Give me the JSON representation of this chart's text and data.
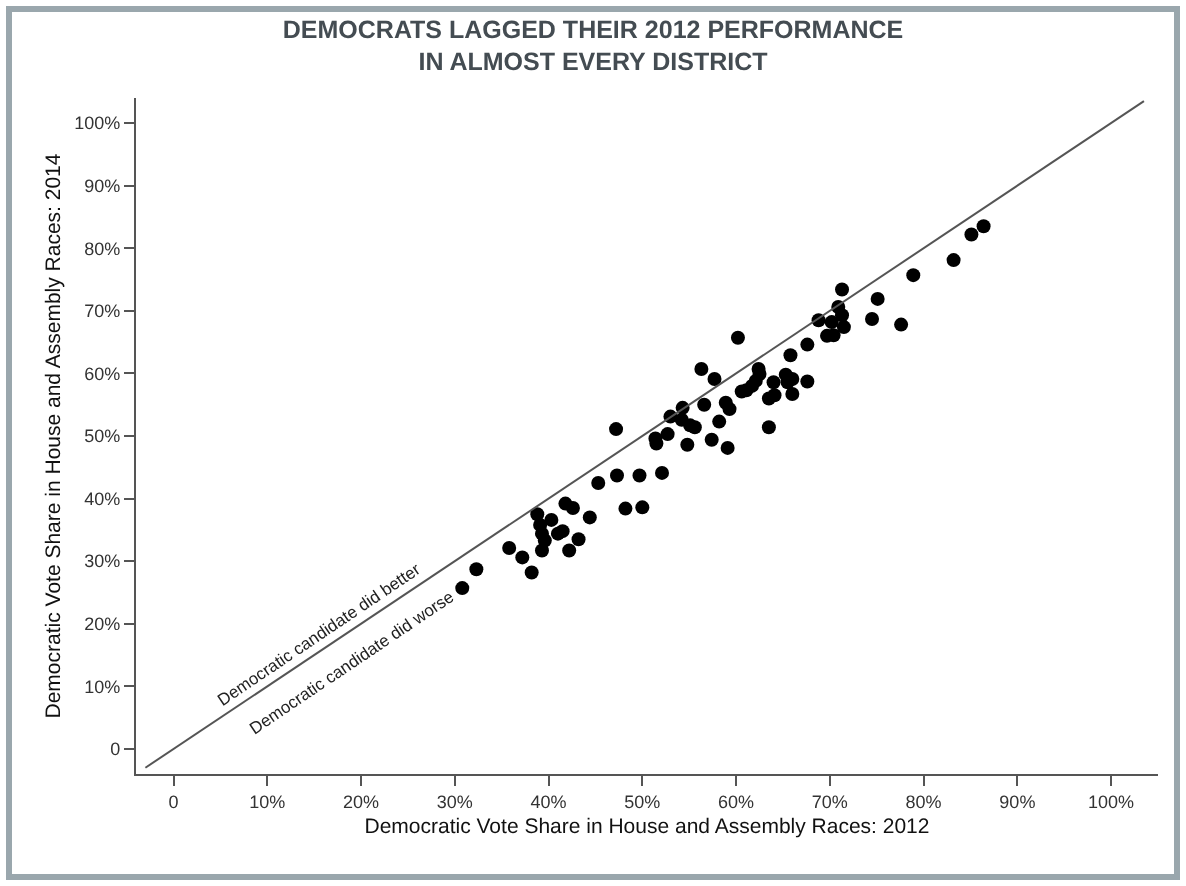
{
  "chart_data": {
    "type": "scatter",
    "title": "DEMOCRATS LAGGED THEIR 2012 PERFORMANCE\nIN ALMOST EVERY DISTRICT",
    "xlabel": "Democratic Vote Share in House and Assembly Races: 2012",
    "ylabel": "Democratic Vote Share in House and Assembly Races: 2014",
    "xlim": [
      -4,
      105
    ],
    "ylim": [
      -4,
      104
    ],
    "xticks": [
      0,
      {
        "value": 10,
        "label": "10%"
      },
      {
        "value": 20,
        "label": "20%"
      },
      {
        "value": 30,
        "label": "30%"
      },
      {
        "value": 40,
        "label": "40%"
      },
      {
        "value": 50,
        "label": "50%"
      },
      {
        "value": 60,
        "label": "60%"
      },
      {
        "value": 70,
        "label": "70%"
      },
      {
        "value": 80,
        "label": "80%"
      },
      {
        "value": 90,
        "label": "90%"
      },
      {
        "value": 100,
        "label": "100%"
      }
    ],
    "yticks": [
      0,
      {
        "value": 10,
        "label": "10%"
      },
      {
        "value": 20,
        "label": "20%"
      },
      {
        "value": 30,
        "label": "30%"
      },
      {
        "value": 40,
        "label": "40%"
      },
      {
        "value": 50,
        "label": "50%"
      },
      {
        "value": 60,
        "label": "60%"
      },
      {
        "value": 70,
        "label": "70%"
      },
      {
        "value": 80,
        "label": "80%"
      },
      {
        "value": 90,
        "label": "90%"
      },
      {
        "value": 100,
        "label": "100%"
      }
    ],
    "grid": false,
    "marker": "circle",
    "series": [
      {
        "color": "#000000",
        "x": [
          30.8,
          32.3,
          35.8,
          37.2,
          38.2,
          38.8,
          39.1,
          40.3,
          39.3,
          39.6,
          39.3,
          41.0,
          41.5,
          42.2,
          43.2,
          41.8,
          42.6,
          44.4,
          48.2,
          50.0,
          45.3,
          47.3,
          47.2,
          49.7,
          52.1,
          51.4,
          51.5,
          52.7,
          53.0,
          54.3,
          54.2,
          54.8,
          55.1,
          55.6,
          56.3,
          56.6,
          57.4,
          57.7,
          58.2,
          59.1,
          58.9,
          59.3,
          60.2,
          60.6,
          61.1,
          61.7,
          62.1,
          62.4,
          62.5,
          63.5,
          63.5,
          64.1,
          64.0,
          65.3,
          65.5,
          66.0,
          66.0,
          65.8,
          67.6,
          67.6,
          68.8,
          69.7,
          70.4,
          70.2,
          71.3,
          71.5,
          74.5,
          70.9,
          71.3,
          75.1,
          77.6,
          78.9,
          83.2,
          85.1,
          86.4
        ],
        "values": [
          25.7,
          28.7,
          32.1,
          30.6,
          28.2,
          37.5,
          35.8,
          36.6,
          34.4,
          33.3,
          31.7,
          34.4,
          34.8,
          31.7,
          33.5,
          39.2,
          38.5,
          37.0,
          38.4,
          38.6,
          42.5,
          43.7,
          51.1,
          43.7,
          44.1,
          49.6,
          48.8,
          50.3,
          53.1,
          54.5,
          52.6,
          48.6,
          51.7,
          51.4,
          60.7,
          55.0,
          49.4,
          59.1,
          52.3,
          48.1,
          55.3,
          54.3,
          65.7,
          57.1,
          57.3,
          58.0,
          58.8,
          60.7,
          59.9,
          51.4,
          56.0,
          56.5,
          58.6,
          59.8,
          58.6,
          59.1,
          56.7,
          62.9,
          58.7,
          64.6,
          68.5,
          66.0,
          66.1,
          68.2,
          69.3,
          67.4,
          68.7,
          70.6,
          73.4,
          71.9,
          67.8,
          75.7,
          78.1,
          82.2,
          83.5
        ]
      },
      {
        "type": "line",
        "color": "#555555",
        "marker": "none",
        "line_style": "solid",
        "x": [
          -3,
          103.5
        ],
        "values": [
          -3,
          103.5
        ]
      }
    ],
    "annotations": [
      "Democratic candidate did better",
      "Democratic candidate did worse"
    ]
  }
}
